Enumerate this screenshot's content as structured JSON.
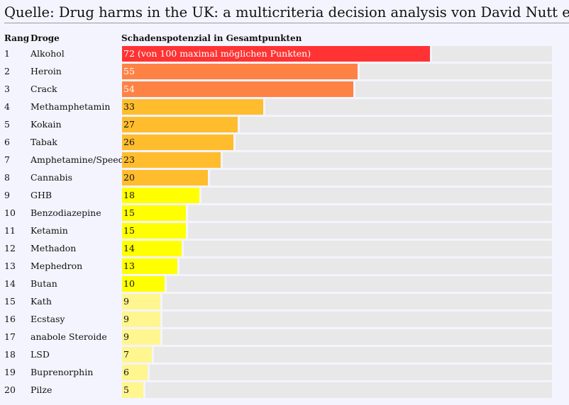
{
  "title": "Quelle: Drug harms in the UK: a multicriteria decision analysis von David Nutt et al.",
  "chart_data": {
    "type": "bar",
    "orientation": "horizontal",
    "headers": {
      "rank": "Rang",
      "drug": "Droge",
      "value": "Schadenspotenzial in Gesamtpunkten"
    },
    "max": 100,
    "first_label_suffix": " (von 100 maximal möglichen Punkten)",
    "rows": [
      {
        "rank": "1",
        "drug": "Alkohol",
        "value": 72,
        "color": "#ff3333"
      },
      {
        "rank": "2",
        "drug": "Heroin",
        "value": 55,
        "color": "#ff8245"
      },
      {
        "rank": "3",
        "drug": "Crack",
        "value": 54,
        "color": "#ff8245"
      },
      {
        "rank": "4",
        "drug": "Methamphetamin",
        "value": 33,
        "color": "#ffbd2e"
      },
      {
        "rank": "5",
        "drug": "Kokain",
        "value": 27,
        "color": "#ffbd2e"
      },
      {
        "rank": "6",
        "drug": "Tabak",
        "value": 26,
        "color": "#ffbd2e"
      },
      {
        "rank": "7",
        "drug": "Amphetamine/Speed",
        "value": 23,
        "color": "#ffbd2e"
      },
      {
        "rank": "8",
        "drug": "Cannabis",
        "value": 20,
        "color": "#ffbd2e"
      },
      {
        "rank": "9",
        "drug": "GHB",
        "value": 18,
        "color": "#ffff00"
      },
      {
        "rank": "10",
        "drug": "Benzodiazepine",
        "value": 15,
        "color": "#ffff00"
      },
      {
        "rank": "11",
        "drug": "Ketamin",
        "value": 15,
        "color": "#ffff00"
      },
      {
        "rank": "12",
        "drug": "Methadon",
        "value": 14,
        "color": "#ffff00"
      },
      {
        "rank": "13",
        "drug": "Mephedron",
        "value": 13,
        "color": "#ffff00"
      },
      {
        "rank": "14",
        "drug": "Butan",
        "value": 10,
        "color": "#ffff00"
      },
      {
        "rank": "15",
        "drug": "Kath",
        "value": 9,
        "color": "#fff68f"
      },
      {
        "rank": "16",
        "drug": "Ecstasy",
        "value": 9,
        "color": "#fff68f"
      },
      {
        "rank": "17",
        "drug": "anabole Steroide",
        "value": 9,
        "color": "#fff68f"
      },
      {
        "rank": "18",
        "drug": "LSD",
        "value": 7,
        "color": "#fff68f"
      },
      {
        "rank": "19",
        "drug": "Buprenorphin",
        "value": 6,
        "color": "#fff68f"
      },
      {
        "rank": "20",
        "drug": "Pilze",
        "value": 5,
        "color": "#fff68f"
      }
    ]
  }
}
